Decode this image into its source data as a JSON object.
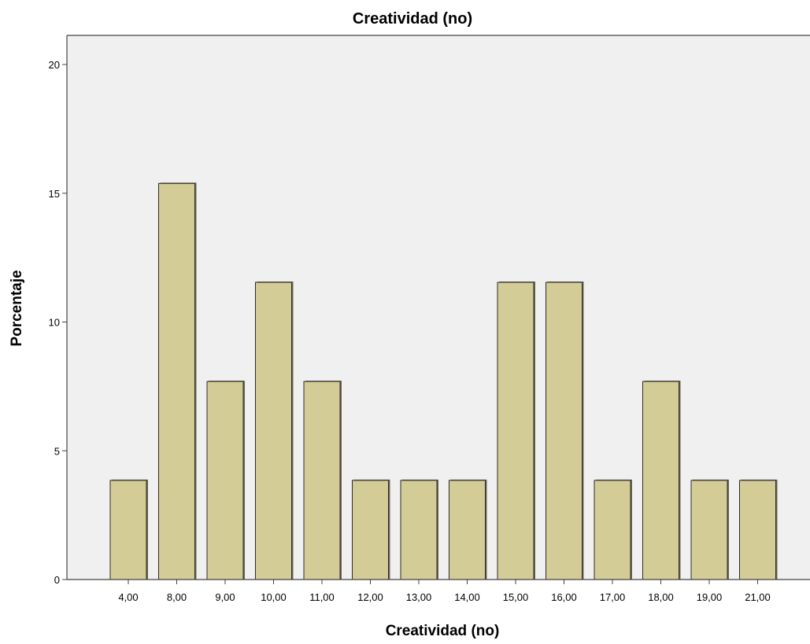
{
  "chart_data": {
    "type": "bar",
    "title": "Creatividad (no)",
    "xlabel": "Creatividad (no)",
    "ylabel": "Porcentaje",
    "categories": [
      "4,00",
      "8,00",
      "9,00",
      "10,00",
      "11,00",
      "12,00",
      "13,00",
      "14,00",
      "15,00",
      "16,00",
      "17,00",
      "18,00",
      "19,00",
      "21,00"
    ],
    "values": [
      3.85,
      15.38,
      7.69,
      11.54,
      7.69,
      3.85,
      3.85,
      3.85,
      11.54,
      11.54,
      3.85,
      7.69,
      3.85,
      3.85
    ],
    "yticks": [
      "0",
      "5",
      "10",
      "15",
      "20"
    ],
    "ylim": [
      0,
      20
    ],
    "grid": false,
    "legend": "none",
    "colors": {
      "bar_fill": "#d3cc96",
      "bar_stroke": "#2b2b2b",
      "plot_bg": "#f0f0f0",
      "axis": "#444444"
    }
  }
}
